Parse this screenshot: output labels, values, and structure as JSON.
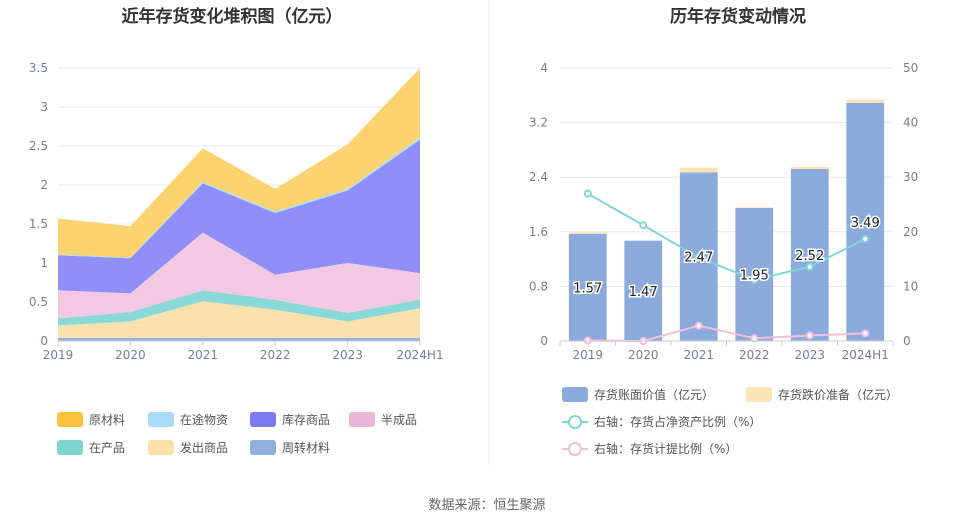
{
  "left_chart": {
    "title": "近年存货变化堆积图（亿元）",
    "categories": [
      "2019",
      "2020",
      "2021",
      "2022",
      "2023",
      "2024H1"
    ],
    "ylim": [
      0,
      3.5
    ],
    "yticks": [
      "0",
      "0.5",
      "1",
      "1.5",
      "2",
      "2.5",
      "3",
      "3.5"
    ],
    "series": [
      {
        "name": "周转材料",
        "color": "#8fb4dc",
        "values": [
          0.04,
          0.04,
          0.04,
          0.04,
          0.04,
          0.04
        ]
      },
      {
        "name": "发出商品",
        "color": "#fce0ad",
        "values": [
          0.16,
          0.21,
          0.47,
          0.36,
          0.21,
          0.38
        ]
      },
      {
        "name": "在产品",
        "color": "#8ad9d9",
        "values": [
          0.09,
          0.12,
          0.14,
          0.13,
          0.11,
          0.11
        ]
      },
      {
        "name": "半成品",
        "color": "#f2c8e3",
        "values": [
          0.36,
          0.24,
          0.74,
          0.32,
          0.64,
          0.34
        ]
      },
      {
        "name": "库存商品",
        "color": "#8f8ff7",
        "values": [
          0.45,
          0.45,
          0.63,
          0.79,
          0.93,
          1.71
        ]
      },
      {
        "name": "在途物资",
        "color": "#a9dcfa",
        "values": [
          0.01,
          0.01,
          0.02,
          0.02,
          0.02,
          0.03
        ]
      },
      {
        "name": "原材料",
        "color": "#fdd36f",
        "values": [
          0.46,
          0.4,
          0.43,
          0.29,
          0.57,
          0.89
        ]
      }
    ],
    "legend_order": [
      "原材料",
      "在途物资",
      "库存商品",
      "半成品",
      "在产品",
      "发出商品",
      "周转材料"
    ],
    "legend_colors": {
      "原材料": "#fcc341",
      "在途物资": "#a9dcfa",
      "库存商品": "#7b7bf2",
      "半成品": "#e9b8d8",
      "在产品": "#80d5d3",
      "发出商品": "#fddfa9",
      "周转材料": "#8fb0da"
    }
  },
  "right_chart": {
    "title": "历年存货变动情况",
    "categories": [
      "2019",
      "2020",
      "2021",
      "2022",
      "2023",
      "2024H1"
    ],
    "ylim_left": [
      0,
      4
    ],
    "ylim_right": [
      0,
      50
    ],
    "yticks_left": [
      "0",
      "0.8",
      "1.6",
      "2.4",
      "3.2",
      "4"
    ],
    "yticks_right": [
      "0",
      "10",
      "20",
      "30",
      "40",
      "50"
    ],
    "bar_series": {
      "name": "存货账面价值（亿元）",
      "color": "#8aabdc",
      "values": [
        1.57,
        1.47,
        2.47,
        1.95,
        2.52,
        3.49
      ],
      "labels": [
        "1.57",
        "1.47",
        "2.47",
        "1.95",
        "2.52",
        "3.49"
      ]
    },
    "bar_series_2": {
      "name": "存货跌价准备（亿元）",
      "color": "#fce4b4",
      "values": [
        0.02,
        0.0,
        0.07,
        0.01,
        0.03,
        0.05
      ]
    },
    "line_series": [
      {
        "name": "右轴：存货占净资产比例（%）",
        "color": "#7fd7d6",
        "values": [
          27.0,
          21.2,
          15.3,
          11.2,
          13.6,
          18.7
        ]
      },
      {
        "name": "右轴：存货计提比例（%）",
        "color": "#f2bfdc",
        "values": [
          0.1,
          0.0,
          2.8,
          0.5,
          1.0,
          1.4
        ]
      }
    ]
  },
  "footer": {
    "source": "数据来源：恒生聚源"
  }
}
